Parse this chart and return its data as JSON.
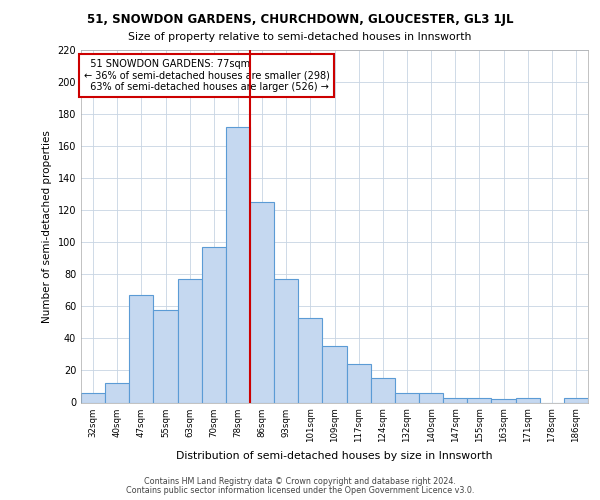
{
  "title_line1": "51, SNOWDON GARDENS, CHURCHDOWN, GLOUCESTER, GL3 1JL",
  "title_line2": "Size of property relative to semi-detached houses in Innsworth",
  "xlabel": "Distribution of semi-detached houses by size in Innsworth",
  "ylabel": "Number of semi-detached properties",
  "categories": [
    "32sqm",
    "40sqm",
    "47sqm",
    "55sqm",
    "63sqm",
    "70sqm",
    "78sqm",
    "86sqm",
    "93sqm",
    "101sqm",
    "109sqm",
    "117sqm",
    "124sqm",
    "132sqm",
    "140sqm",
    "147sqm",
    "155sqm",
    "163sqm",
    "171sqm",
    "178sqm",
    "186sqm"
  ],
  "values": [
    6,
    12,
    67,
    58,
    77,
    97,
    172,
    125,
    77,
    53,
    35,
    24,
    15,
    6,
    6,
    3,
    3,
    2,
    3,
    0,
    3
  ],
  "bar_color": "#c5d8f0",
  "bar_edge_color": "#5b9bd5",
  "vline_bar_index": 7,
  "annotation_line1": "  51 SNOWDON GARDENS: 77sqm",
  "annotation_line2": "← 36% of semi-detached houses are smaller (298)",
  "annotation_line3": "  63% of semi-detached houses are larger (526) →",
  "annotation_box_color": "#ffffff",
  "annotation_box_edge_color": "#cc0000",
  "vline_color": "#cc0000",
  "ylim": [
    0,
    220
  ],
  "yticks": [
    0,
    20,
    40,
    60,
    80,
    100,
    120,
    140,
    160,
    180,
    200,
    220
  ],
  "grid_color": "#c8d4e3",
  "background_color": "#ffffff",
  "footnote1": "Contains HM Land Registry data © Crown copyright and database right 2024.",
  "footnote2": "Contains public sector information licensed under the Open Government Licence v3.0."
}
